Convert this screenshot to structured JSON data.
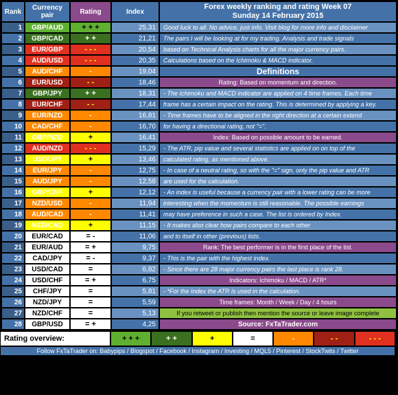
{
  "title": "Forex weekly ranking and rating Week 07",
  "subtitle": "Sunday 14 February 2015",
  "headers": {
    "rank": "Rank",
    "pair": "Currency pair",
    "rating": "Rating",
    "index": "Index"
  },
  "colors": {
    "blue_dark": "#3a5f8a",
    "blue_med": "#4472a8",
    "blue_light": "#6a92c0",
    "purple": "#8b4a8b",
    "green_bright": "#5fb030",
    "green_dark": "#3a7020",
    "yellow": "#ffff00",
    "orange": "#ff8800",
    "red": "#e03020",
    "red_dark": "#a02015",
    "white": "#ffffff",
    "black": "#000000",
    "green_footer": "#90c040"
  },
  "rows": [
    {
      "rank": 1,
      "pair": "GBP/AUD",
      "pairBg": "#5fb030",
      "rating": "+ + +",
      "ratingBg": "#5fb030",
      "ratingFg": "#000",
      "index": "25,31"
    },
    {
      "rank": 2,
      "pair": "GBP/CAD",
      "pairBg": "#3a7020",
      "rating": "+ +",
      "ratingBg": "#3a7020",
      "ratingFg": "#fff",
      "index": "21,21"
    },
    {
      "rank": 3,
      "pair": "EUR/GBP",
      "pairBg": "#e03020",
      "rating": "- - -",
      "ratingBg": "#e03020",
      "ratingFg": "#ffff00",
      "index": "20,54"
    },
    {
      "rank": 4,
      "pair": "AUD/USD",
      "pairBg": "#e03020",
      "rating": "- - -",
      "ratingBg": "#e03020",
      "ratingFg": "#ffff00",
      "index": "20,35"
    },
    {
      "rank": 5,
      "pair": "AUD/CHF",
      "pairBg": "#ff8800",
      "rating": "-",
      "ratingBg": "#ff8800",
      "ratingFg": "#fff",
      "index": "19,04"
    },
    {
      "rank": 6,
      "pair": "EUR/USD",
      "pairBg": "#a02015",
      "rating": "- -",
      "ratingBg": "#a02015",
      "ratingFg": "#ffff00",
      "index": "18,46"
    },
    {
      "rank": 7,
      "pair": "GBP/JPY",
      "pairBg": "#3a7020",
      "rating": "+ +",
      "ratingBg": "#3a7020",
      "ratingFg": "#fff",
      "index": "18,31"
    },
    {
      "rank": 8,
      "pair": "EUR/CHF",
      "pairBg": "#a02015",
      "rating": "- -",
      "ratingBg": "#a02015",
      "ratingFg": "#ffff00",
      "index": "17,44"
    },
    {
      "rank": 9,
      "pair": "EUR/NZD",
      "pairBg": "#ff8800",
      "rating": "-",
      "ratingBg": "#ff8800",
      "ratingFg": "#fff",
      "index": "16,81"
    },
    {
      "rank": 10,
      "pair": "CAD/CHF",
      "pairBg": "#ff8800",
      "rating": "-",
      "ratingBg": "#ff8800",
      "ratingFg": "#fff",
      "index": "16,70"
    },
    {
      "rank": 11,
      "pair": "GBP/NZD",
      "pairBg": "#ffff00",
      "rating": "+",
      "ratingBg": "#ffff00",
      "ratingFg": "#000",
      "index": "16,41"
    },
    {
      "rank": 12,
      "pair": "AUD/NZD",
      "pairBg": "#e03020",
      "rating": "- - -",
      "ratingBg": "#e03020",
      "ratingFg": "#ffff00",
      "index": "15,29"
    },
    {
      "rank": 13,
      "pair": "USD/JPY",
      "pairBg": "#ffff00",
      "rating": "+",
      "ratingBg": "#ffff00",
      "ratingFg": "#000",
      "index": "13,46"
    },
    {
      "rank": 14,
      "pair": "EUR/JPY",
      "pairBg": "#ff8800",
      "rating": "-",
      "ratingBg": "#ff8800",
      "ratingFg": "#fff",
      "index": "12,75"
    },
    {
      "rank": 15,
      "pair": "AUD/JPY",
      "pairBg": "#ff8800",
      "rating": "-",
      "ratingBg": "#ff8800",
      "ratingFg": "#fff",
      "index": "12,58"
    },
    {
      "rank": 16,
      "pair": "GBP/CHF",
      "pairBg": "#ffff00",
      "rating": "+",
      "ratingBg": "#ffff00",
      "ratingFg": "#000",
      "index": "12,12"
    },
    {
      "rank": 17,
      "pair": "NZD/USD",
      "pairBg": "#ff8800",
      "rating": "-",
      "ratingBg": "#ff8800",
      "ratingFg": "#fff",
      "index": "11,94"
    },
    {
      "rank": 18,
      "pair": "AUD/CAD",
      "pairBg": "#ff8800",
      "rating": "-",
      "ratingBg": "#ff8800",
      "ratingFg": "#fff",
      "index": "11,41"
    },
    {
      "rank": 19,
      "pair": "NZD/CAD",
      "pairBg": "#ffff00",
      "rating": "+",
      "ratingBg": "#ffff00",
      "ratingFg": "#000",
      "index": "11,15"
    },
    {
      "rank": 20,
      "pair": "EUR/CAD",
      "pairBg": "#ffffff",
      "pairFg": "#000",
      "rating": "= -",
      "ratingBg": "#ffffff",
      "ratingFg": "#000",
      "index": "11,06"
    },
    {
      "rank": 21,
      "pair": "EUR/AUD",
      "pairBg": "#ffffff",
      "pairFg": "#000",
      "rating": "= +",
      "ratingBg": "#ffffff",
      "ratingFg": "#000",
      "index": "9,75"
    },
    {
      "rank": 22,
      "pair": "CAD/JPY",
      "pairBg": "#ffffff",
      "pairFg": "#000",
      "rating": "= -",
      "ratingBg": "#ffffff",
      "ratingFg": "#000",
      "index": "9,37"
    },
    {
      "rank": 23,
      "pair": "USD/CAD",
      "pairBg": "#ffffff",
      "pairFg": "#000",
      "rating": "=",
      "ratingBg": "#ffffff",
      "ratingFg": "#000",
      "index": "6,82"
    },
    {
      "rank": 24,
      "pair": "USD/CHF",
      "pairBg": "#ffffff",
      "pairFg": "#000",
      "rating": "= +",
      "ratingBg": "#ffffff",
      "ratingFg": "#000",
      "index": "6,75"
    },
    {
      "rank": 25,
      "pair": "CHF/JPY",
      "pairBg": "#ffffff",
      "pairFg": "#000",
      "rating": "=",
      "ratingBg": "#ffffff",
      "ratingFg": "#000",
      "index": "5,81"
    },
    {
      "rank": 26,
      "pair": "NZD/JPY",
      "pairBg": "#ffffff",
      "pairFg": "#000",
      "rating": "=",
      "ratingBg": "#ffffff",
      "ratingFg": "#000",
      "index": "5,59"
    },
    {
      "rank": 27,
      "pair": "NZD/CHF",
      "pairBg": "#ffffff",
      "pairFg": "#000",
      "rating": "=",
      "ratingBg": "#ffffff",
      "ratingFg": "#000",
      "index": "5,13"
    },
    {
      "rank": 28,
      "pair": "GBP/USD",
      "pairBg": "#ffffff",
      "pairFg": "#000",
      "rating": "= +",
      "ratingBg": "#ffffff",
      "ratingFg": "#000",
      "index": "4,25"
    }
  ],
  "info": [
    {
      "type": "line",
      "text": "Good luck to all. No advice, just info. Visit blog for more info and disclaimer"
    },
    {
      "type": "line",
      "text": "The pairs I will be looking at for my trading. Analysis and trade signals"
    },
    {
      "type": "line",
      "text": "based on Technical Analysis charts for all the major currency pairs."
    },
    {
      "type": "line",
      "text": "Calculations based on the Ichimoku & MACD indicator."
    },
    {
      "type": "defhdr",
      "text": "Definitions"
    },
    {
      "type": "subhdr",
      "text": "Rating: Based on momentum and direction."
    },
    {
      "type": "line",
      "text": "- The Ichimoku and MACD indicator are applied on 4 time frames. Each time"
    },
    {
      "type": "line",
      "text": "  frame has a certain impact on the rating. This is determined by applying a key."
    },
    {
      "type": "line",
      "text": "- Time frames have to be aligned in the right direction at  a certain extend"
    },
    {
      "type": "line",
      "text": "  for having a directional rating, not \"=\"."
    },
    {
      "type": "subhdr",
      "text": "Index: Based on possible amount to be earned."
    },
    {
      "type": "line",
      "text": "- The ATR, pip value and several statistics are applied on on top of the"
    },
    {
      "type": "line",
      "text": "  calculated rating, as mentioned above."
    },
    {
      "type": "line",
      "text": "- In case of a neutral rating, so with the \"=\" sign, only the pip value and ATR"
    },
    {
      "type": "line",
      "text": "  are used for the calculation."
    },
    {
      "type": "line",
      "text": "- An index is useful because a currency pair with a lower rating can be more"
    },
    {
      "type": "line",
      "text": "  interesting when the momentum is still reasonable. The possible earnings"
    },
    {
      "type": "line",
      "text": "  may have preference in such a case. The list is ordered by Index."
    },
    {
      "type": "line",
      "text": "- It makes also clear how pairs compare to each other"
    },
    {
      "type": "line",
      "text": "  and to itself in other (previous) lists."
    },
    {
      "type": "subhdr",
      "text": "Rank: The best performer is in the first place of the list."
    },
    {
      "type": "line",
      "text": "- This is the pair with the highest index."
    },
    {
      "type": "line",
      "text": "- Since there are 28 major currency pairs the last place is rank 28."
    },
    {
      "type": "subhdr",
      "text": "Indicators: Ichimoku / MACD / ATR*"
    },
    {
      "type": "line",
      "text": "- *For the Index the ATR is used in the calculation."
    },
    {
      "type": "subhdr",
      "text": "Time frames: Month / Week / Day / 4 hours"
    },
    {
      "type": "green",
      "text": "If you retweet or publish then mention the source or leave image complete"
    },
    {
      "type": "src",
      "text": "Source: FxTaTrader.com"
    }
  ],
  "overview": {
    "label": "Rating overview:",
    "cells": [
      {
        "text": "+ + +",
        "bg": "#5fb030",
        "fg": "#000"
      },
      {
        "text": "+ +",
        "bg": "#3a7020",
        "fg": "#fff"
      },
      {
        "text": "+",
        "bg": "#ffff00",
        "fg": "#000"
      },
      {
        "text": "=",
        "bg": "#ffffff",
        "fg": "#000"
      },
      {
        "text": "-",
        "bg": "#ff8800",
        "fg": "#fff"
      },
      {
        "text": "- -",
        "bg": "#a02015",
        "fg": "#ffff00"
      },
      {
        "text": "- - -",
        "bg": "#e03020",
        "fg": "#ffff00"
      }
    ]
  },
  "follow": "Follow FxTaTrader on: Babypips / Blogspot / Facebook / Instagram / Investing / MQL5 / Pinterest / StockTwits / Twitter"
}
